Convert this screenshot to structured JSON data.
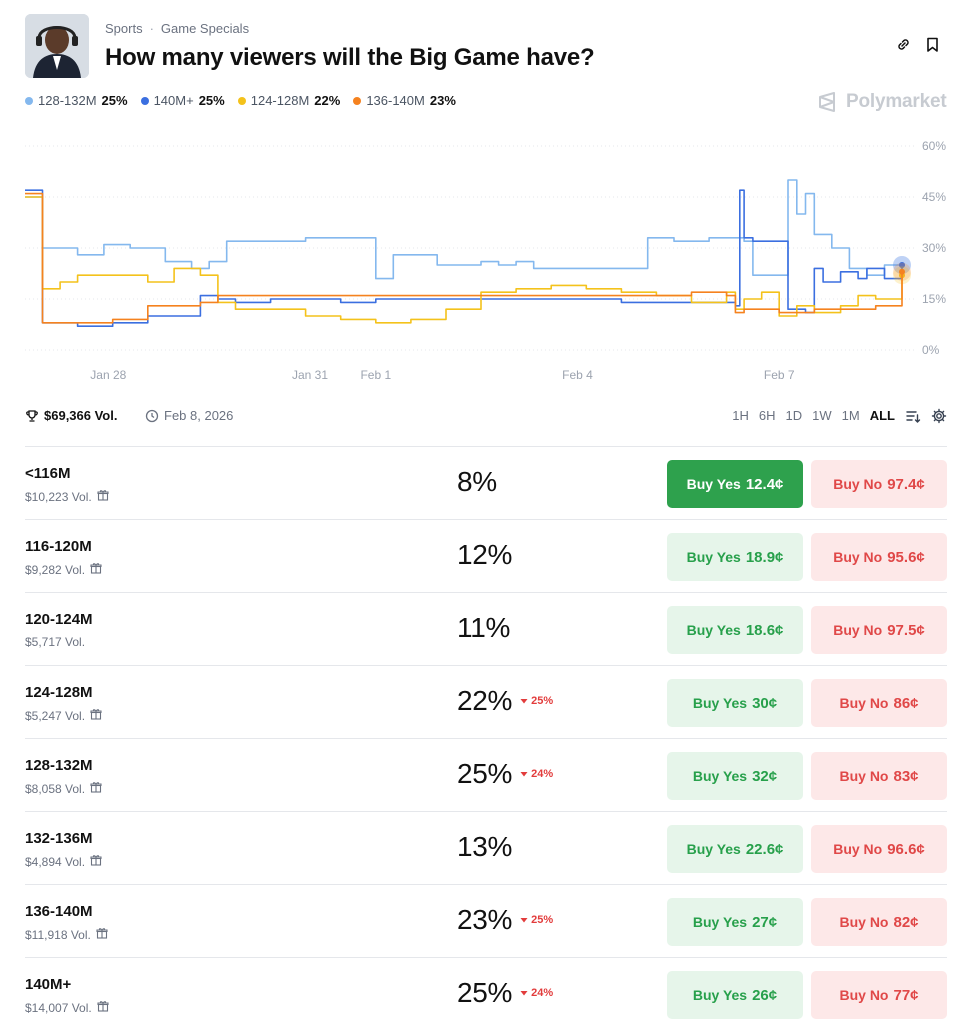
{
  "header": {
    "breadcrumb": [
      "Sports",
      "Game Specials"
    ],
    "title": "How many viewers will the Big Game have?"
  },
  "legend": [
    {
      "label": "128-132M",
      "pct": "25%",
      "color": "#84b8ee"
    },
    {
      "label": "140M+",
      "pct": "25%",
      "color": "#3b6fe0"
    },
    {
      "label": "124-128M",
      "pct": "22%",
      "color": "#f4c21b"
    },
    {
      "label": "136-140M",
      "pct": "23%",
      "color": "#f5821f"
    }
  ],
  "brand": "Polymarket",
  "chart_data": {
    "type": "line",
    "ylim": [
      0,
      60
    ],
    "y_ticks": [
      "60%",
      "45%",
      "30%",
      "15%",
      "0%"
    ],
    "x_ticks": [
      "Jan 28",
      "Jan 31",
      "Feb 1",
      "Feb 4",
      "Feb 7"
    ],
    "grid": true,
    "series": [
      {
        "name": "128-132M",
        "color": "#84b8ee",
        "values": [
          [
            0,
            45
          ],
          [
            0.02,
            30
          ],
          [
            0.06,
            28
          ],
          [
            0.09,
            31
          ],
          [
            0.12,
            30
          ],
          [
            0.16,
            26
          ],
          [
            0.19,
            24
          ],
          [
            0.21,
            26
          ],
          [
            0.23,
            32
          ],
          [
            0.27,
            32
          ],
          [
            0.32,
            33
          ],
          [
            0.36,
            33
          ],
          [
            0.39,
            33
          ],
          [
            0.4,
            21
          ],
          [
            0.42,
            28
          ],
          [
            0.44,
            28
          ],
          [
            0.47,
            25
          ],
          [
            0.5,
            25
          ],
          [
            0.52,
            26
          ],
          [
            0.54,
            25
          ],
          [
            0.56,
            26
          ],
          [
            0.58,
            24
          ],
          [
            0.6,
            24
          ],
          [
            0.62,
            24
          ],
          [
            0.64,
            24
          ],
          [
            0.66,
            24
          ],
          [
            0.69,
            24
          ],
          [
            0.71,
            33
          ],
          [
            0.74,
            32
          ],
          [
            0.78,
            33
          ],
          [
            0.81,
            33
          ],
          [
            0.82,
            32
          ],
          [
            0.83,
            22
          ],
          [
            0.85,
            22
          ],
          [
            0.87,
            50
          ],
          [
            0.88,
            40
          ],
          [
            0.89,
            46
          ],
          [
            0.9,
            34
          ],
          [
            0.92,
            30
          ],
          [
            0.94,
            24
          ],
          [
            0.96,
            22
          ],
          [
            0.98,
            25
          ],
          [
            1.0,
            25
          ]
        ]
      },
      {
        "name": "140M+",
        "color": "#3b6fe0",
        "values": [
          [
            0,
            47
          ],
          [
            0.02,
            8
          ],
          [
            0.06,
            7
          ],
          [
            0.1,
            8
          ],
          [
            0.14,
            10
          ],
          [
            0.17,
            10
          ],
          [
            0.2,
            16
          ],
          [
            0.22,
            15
          ],
          [
            0.24,
            14
          ],
          [
            0.28,
            15
          ],
          [
            0.32,
            15
          ],
          [
            0.36,
            14
          ],
          [
            0.4,
            15
          ],
          [
            0.46,
            15
          ],
          [
            0.52,
            15
          ],
          [
            0.56,
            15
          ],
          [
            0.6,
            15
          ],
          [
            0.64,
            15
          ],
          [
            0.68,
            14
          ],
          [
            0.72,
            14
          ],
          [
            0.76,
            14
          ],
          [
            0.81,
            13
          ],
          [
            0.815,
            47
          ],
          [
            0.82,
            33
          ],
          [
            0.83,
            32
          ],
          [
            0.86,
            32
          ],
          [
            0.87,
            12
          ],
          [
            0.89,
            11
          ],
          [
            0.9,
            24
          ],
          [
            0.91,
            20
          ],
          [
            0.93,
            23
          ],
          [
            0.95,
            21
          ],
          [
            0.96,
            24
          ],
          [
            0.98,
            21
          ],
          [
            1.0,
            25
          ]
        ]
      },
      {
        "name": "124-128M",
        "color": "#f4c21b",
        "values": [
          [
            0,
            45
          ],
          [
            0.02,
            18
          ],
          [
            0.04,
            20
          ],
          [
            0.06,
            22
          ],
          [
            0.1,
            22
          ],
          [
            0.14,
            20
          ],
          [
            0.17,
            24
          ],
          [
            0.2,
            22
          ],
          [
            0.22,
            14
          ],
          [
            0.24,
            12
          ],
          [
            0.28,
            12
          ],
          [
            0.32,
            10
          ],
          [
            0.36,
            9
          ],
          [
            0.4,
            8
          ],
          [
            0.44,
            9
          ],
          [
            0.48,
            12
          ],
          [
            0.52,
            17
          ],
          [
            0.56,
            18
          ],
          [
            0.6,
            19
          ],
          [
            0.64,
            18
          ],
          [
            0.68,
            17
          ],
          [
            0.72,
            16
          ],
          [
            0.76,
            14
          ],
          [
            0.8,
            17
          ],
          [
            0.81,
            12
          ],
          [
            0.82,
            15
          ],
          [
            0.84,
            17
          ],
          [
            0.86,
            10
          ],
          [
            0.88,
            13
          ],
          [
            0.9,
            11
          ],
          [
            0.93,
            13
          ],
          [
            0.95,
            16
          ],
          [
            0.97,
            15
          ],
          [
            1.0,
            22
          ]
        ]
      },
      {
        "name": "136-140M",
        "color": "#f5821f",
        "values": [
          [
            0,
            46
          ],
          [
            0.02,
            8
          ],
          [
            0.06,
            8
          ],
          [
            0.1,
            9
          ],
          [
            0.14,
            13
          ],
          [
            0.17,
            13
          ],
          [
            0.2,
            14
          ],
          [
            0.22,
            16
          ],
          [
            0.24,
            16
          ],
          [
            0.28,
            16
          ],
          [
            0.32,
            16
          ],
          [
            0.36,
            16
          ],
          [
            0.4,
            16
          ],
          [
            0.44,
            16
          ],
          [
            0.48,
            16
          ],
          [
            0.52,
            16
          ],
          [
            0.56,
            16
          ],
          [
            0.6,
            16
          ],
          [
            0.64,
            16
          ],
          [
            0.68,
            16
          ],
          [
            0.72,
            16
          ],
          [
            0.76,
            17
          ],
          [
            0.8,
            16
          ],
          [
            0.81,
            11
          ],
          [
            0.82,
            12
          ],
          [
            0.84,
            12
          ],
          [
            0.86,
            11
          ],
          [
            0.88,
            11
          ],
          [
            0.9,
            12
          ],
          [
            0.92,
            12
          ],
          [
            0.95,
            12
          ],
          [
            0.97,
            13
          ],
          [
            1.0,
            23
          ]
        ]
      }
    ]
  },
  "meta": {
    "volume": "$69,366 Vol.",
    "date": "Feb 8, 2026",
    "ranges": [
      "1H",
      "6H",
      "1D",
      "1W",
      "1M",
      "ALL"
    ],
    "active_range": "ALL"
  },
  "markets": [
    {
      "name": "<116M",
      "volume": "$10,223 Vol.",
      "gift": true,
      "pct": "8%",
      "change": "",
      "yes": "12.4¢",
      "no": "97.4¢",
      "yes_solid": true
    },
    {
      "name": "116-120M",
      "volume": "$9,282 Vol.",
      "gift": true,
      "pct": "12%",
      "change": "",
      "yes": "18.9¢",
      "no": "95.6¢",
      "yes_solid": false
    },
    {
      "name": "120-124M",
      "volume": "$5,717 Vol.",
      "gift": false,
      "pct": "11%",
      "change": "",
      "yes": "18.6¢",
      "no": "97.5¢",
      "yes_solid": false
    },
    {
      "name": "124-128M",
      "volume": "$5,247 Vol.",
      "gift": true,
      "pct": "22%",
      "change": "25%",
      "yes": "30¢",
      "no": "86¢",
      "yes_solid": false
    },
    {
      "name": "128-132M",
      "volume": "$8,058 Vol.",
      "gift": true,
      "pct": "25%",
      "change": "24%",
      "yes": "32¢",
      "no": "83¢",
      "yes_solid": false
    },
    {
      "name": "132-136M",
      "volume": "$4,894 Vol.",
      "gift": true,
      "pct": "13%",
      "change": "",
      "yes": "22.6¢",
      "no": "96.6¢",
      "yes_solid": false
    },
    {
      "name": "136-140M",
      "volume": "$11,918 Vol.",
      "gift": true,
      "pct": "23%",
      "change": "25%",
      "yes": "27¢",
      "no": "82¢",
      "yes_solid": false
    },
    {
      "name": "140M+",
      "volume": "$14,007 Vol.",
      "gift": true,
      "pct": "25%",
      "change": "24%",
      "yes": "26¢",
      "no": "77¢",
      "yes_solid": false
    }
  ],
  "labels": {
    "buy_yes": "Buy Yes",
    "buy_no": "Buy No"
  }
}
